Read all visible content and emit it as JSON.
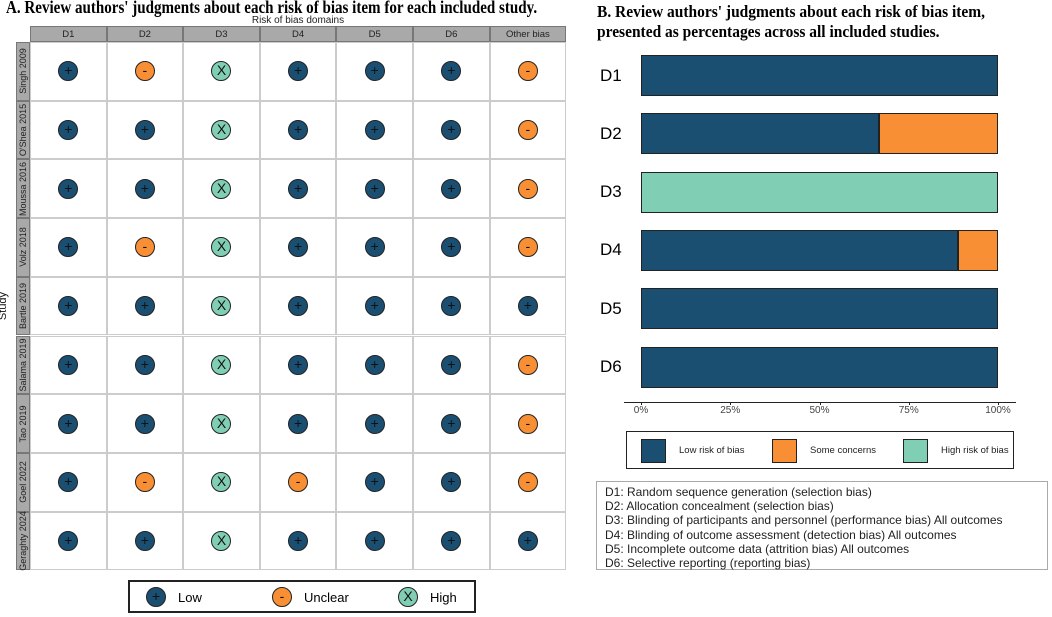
{
  "panel_a": {
    "title": "A. Review authors' judgments about each risk of bias item for each included study.",
    "subtitle": "Risk of bias domains",
    "y_label": "Study",
    "columns": [
      "D1",
      "D2",
      "D3",
      "D4",
      "D5",
      "D6",
      "Other bias"
    ],
    "studies": [
      "Singh 2009",
      "O'Shea 2015",
      "Moussa 2016",
      "Volz 2018",
      "Bartle 2019",
      "Salama 2019",
      "Tao 2019",
      "Goel 2022",
      "Geraghty 2024"
    ],
    "judgments": [
      [
        "low",
        "unclear",
        "high",
        "low",
        "low",
        "low",
        "unclear"
      ],
      [
        "low",
        "low",
        "high",
        "low",
        "low",
        "low",
        "unclear"
      ],
      [
        "low",
        "low",
        "high",
        "low",
        "low",
        "low",
        "unclear"
      ],
      [
        "low",
        "unclear",
        "high",
        "low",
        "low",
        "low",
        "unclear"
      ],
      [
        "low",
        "low",
        "high",
        "low",
        "low",
        "low",
        "low"
      ],
      [
        "low",
        "low",
        "high",
        "low",
        "low",
        "low",
        "unclear"
      ],
      [
        "low",
        "low",
        "high",
        "low",
        "low",
        "low",
        "unclear"
      ],
      [
        "low",
        "unclear",
        "high",
        "unclear",
        "low",
        "low",
        "unclear"
      ],
      [
        "low",
        "low",
        "high",
        "low",
        "low",
        "low",
        "low"
      ]
    ],
    "symbols": {
      "low": "+",
      "unclear": "-",
      "high": "X"
    },
    "colors": {
      "low": "#1b4f72",
      "unclear": "#f98f35",
      "high": "#80cfb4"
    },
    "legend": [
      {
        "key": "low",
        "label": "Low"
      },
      {
        "key": "unclear",
        "label": "Unclear"
      },
      {
        "key": "high",
        "label": "High"
      }
    ]
  },
  "chart_data": {
    "type": "bar",
    "stacked": true,
    "orientation": "horizontal",
    "title": "B. Review authors' judgments about each risk of bias item, presented as percentages across all included studies.",
    "categories": [
      "D1",
      "D2",
      "D3",
      "D4",
      "D5",
      "D6"
    ],
    "series": [
      {
        "name": "Low risk of bias",
        "color": "#1b4f72",
        "values": [
          100,
          66.7,
          0,
          88.9,
          100,
          100
        ]
      },
      {
        "name": "Some concerns",
        "color": "#f98f35",
        "values": [
          0,
          33.3,
          0,
          11.1,
          0,
          0
        ]
      },
      {
        "name": "High risk of bias",
        "color": "#80cfb4",
        "values": [
          0,
          0,
          100,
          0,
          0,
          0
        ]
      }
    ],
    "xlim": [
      0,
      100
    ],
    "x_ticks": [
      "0%",
      "25%",
      "50%",
      "75%",
      "100%"
    ],
    "grid": false,
    "legend_placement": "bottom"
  },
  "definitions": [
    "D1: Random sequence generation (selection bias)",
    "D2: Allocation concealment (selection bias)",
    "D3: Blinding of participants and personnel (performance bias) All outcomes",
    "D4: Blinding of outcome assessment (detection bias) All outcomes",
    "D5: Incomplete outcome data (attrition bias) All outcomes",
    "D6: Selective reporting (reporting bias)"
  ]
}
